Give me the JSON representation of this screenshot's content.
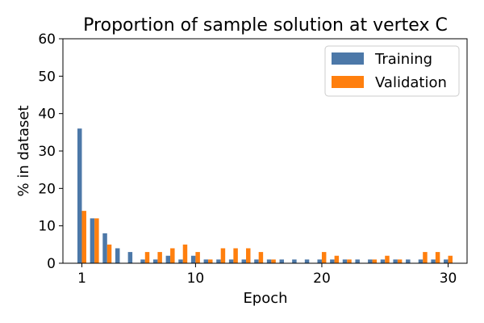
{
  "chart_data": {
    "type": "bar",
    "title": "Proportion of sample solution at vertex C",
    "xlabel": "Epoch",
    "ylabel": "% in dataset",
    "ylim": [
      0,
      60
    ],
    "xlim": [
      -0.5,
      31.5
    ],
    "yticks": [
      0,
      10,
      20,
      30,
      40,
      50,
      60
    ],
    "xticks": [
      1,
      10,
      20,
      30
    ],
    "grid": false,
    "legend_position": "top-right",
    "x": [
      1,
      2,
      3,
      4,
      5,
      6,
      7,
      8,
      9,
      10,
      11,
      12,
      13,
      14,
      15,
      16,
      17,
      18,
      19,
      20,
      21,
      22,
      23,
      24,
      25,
      26,
      27,
      28,
      29,
      30
    ],
    "series": [
      {
        "name": "Training",
        "color": "#4c78a8",
        "values": [
          36,
          12,
          8,
          4,
          3,
          1,
          1,
          2,
          1,
          2,
          1,
          1,
          1,
          1,
          1,
          1,
          1,
          1,
          1,
          1,
          1,
          1,
          1,
          1,
          1,
          1,
          1,
          1,
          1,
          1
        ]
      },
      {
        "name": "Validation",
        "color": "#ff7f0e",
        "values": [
          14,
          12,
          5,
          0,
          0,
          3,
          3,
          4,
          5,
          3,
          1,
          4,
          4,
          4,
          3,
          1,
          0,
          0,
          0,
          3,
          2,
          1,
          0,
          1,
          2,
          1,
          0,
          3,
          3,
          2
        ]
      }
    ]
  }
}
